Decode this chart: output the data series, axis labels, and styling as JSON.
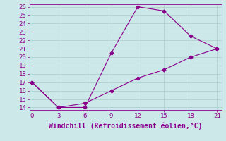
{
  "line1_x": [
    0,
    3,
    6,
    9,
    12,
    15,
    18,
    21
  ],
  "line1_y": [
    17,
    14,
    14,
    20.5,
    26,
    25.5,
    22.5,
    21
  ],
  "line2_x": [
    0,
    3,
    6,
    9,
    12,
    15,
    18,
    21
  ],
  "line2_y": [
    17,
    14,
    14.5,
    16,
    17.5,
    18.5,
    20,
    21
  ],
  "line_color": "#8B008B",
  "marker": "D",
  "marker_size": 2.5,
  "xlabel": "Windchill (Refroidissement éolien,°C)",
  "xlabel_color": "#8B008B",
  "xlim": [
    0,
    21
  ],
  "ylim": [
    14,
    26
  ],
  "xticks": [
    0,
    3,
    6,
    9,
    12,
    15,
    18,
    21
  ],
  "yticks": [
    14,
    15,
    16,
    17,
    18,
    19,
    20,
    21,
    22,
    23,
    24,
    25,
    26
  ],
  "bg_color": "#cce8e8",
  "grid_color": "#aacccc",
  "tick_color": "#8B008B",
  "font_size": 6.5,
  "xlabel_fontsize": 7.0
}
